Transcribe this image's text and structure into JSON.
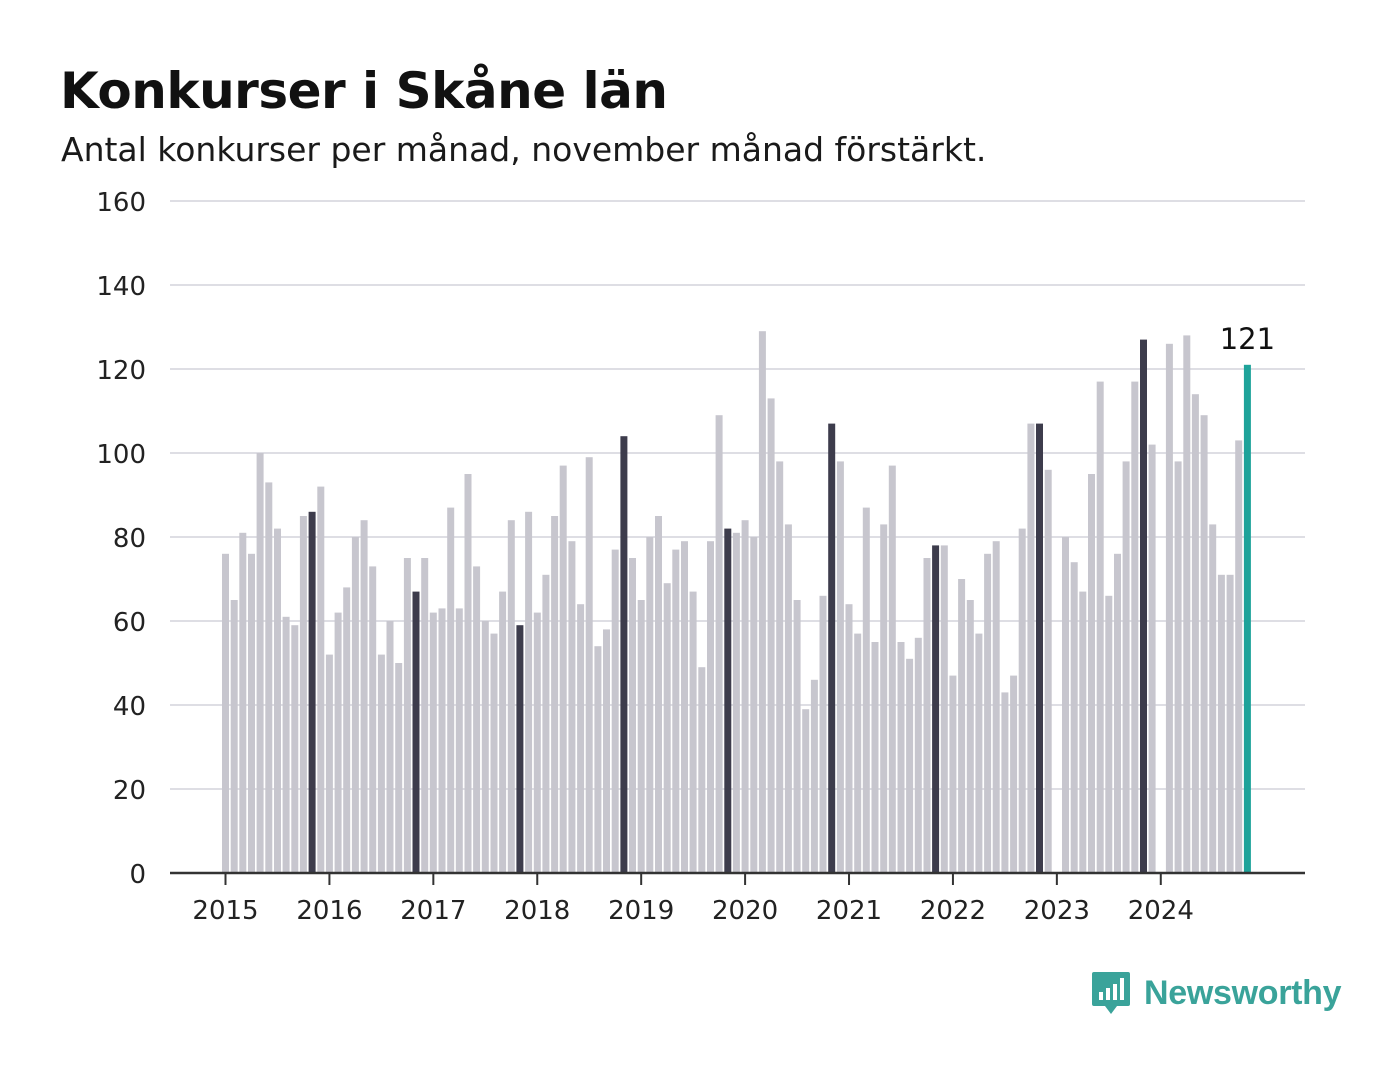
{
  "title": "Konkurser i Skåne län",
  "subtitle": "Antal konkurser per månad, november månad förstärkt.",
  "brand": {
    "name": "Newsworthy"
  },
  "colors": {
    "normal": "#c7c6ce",
    "highlight": "#3d3c4c",
    "latest": "#1fa39a",
    "grid": "#dedee4",
    "axis": "#333333"
  },
  "chart_data": {
    "type": "bar",
    "ylim": [
      0,
      160
    ],
    "y_ticks": [
      "0",
      "20",
      "40",
      "60",
      "80",
      "100",
      "120",
      "140",
      "160"
    ],
    "x_ticks": [
      "2015",
      "2016",
      "2017",
      "2018",
      "2019",
      "2020",
      "2021",
      "2022",
      "2023",
      "2024"
    ],
    "start": "2015-01",
    "grid": true,
    "annotation": {
      "label": "121"
    },
    "highlight_month": "11",
    "values": [
      76,
      65,
      81,
      76,
      100,
      93,
      82,
      61,
      59,
      85,
      86,
      92,
      52,
      62,
      68,
      80,
      84,
      73,
      52,
      60,
      50,
      75,
      67,
      75,
      62,
      63,
      87,
      63,
      95,
      73,
      60,
      57,
      67,
      84,
      59,
      86,
      62,
      71,
      85,
      97,
      79,
      64,
      99,
      54,
      58,
      77,
      104,
      75,
      65,
      80,
      85,
      69,
      77,
      79,
      67,
      49,
      79,
      109,
      82,
      81,
      84,
      80,
      129,
      113,
      98,
      83,
      65,
      39,
      46,
      66,
      107,
      98,
      64,
      57,
      87,
      55,
      83,
      97,
      55,
      51,
      56,
      75,
      78,
      78,
      47,
      70,
      65,
      57,
      76,
      79,
      43,
      47,
      82,
      107,
      107,
      96,
      0,
      80,
      74,
      67,
      95,
      117,
      66,
      76,
      98,
      117,
      127,
      102,
      0,
      126,
      98,
      128,
      114,
      109,
      83,
      71,
      71,
      103,
      121
    ]
  }
}
